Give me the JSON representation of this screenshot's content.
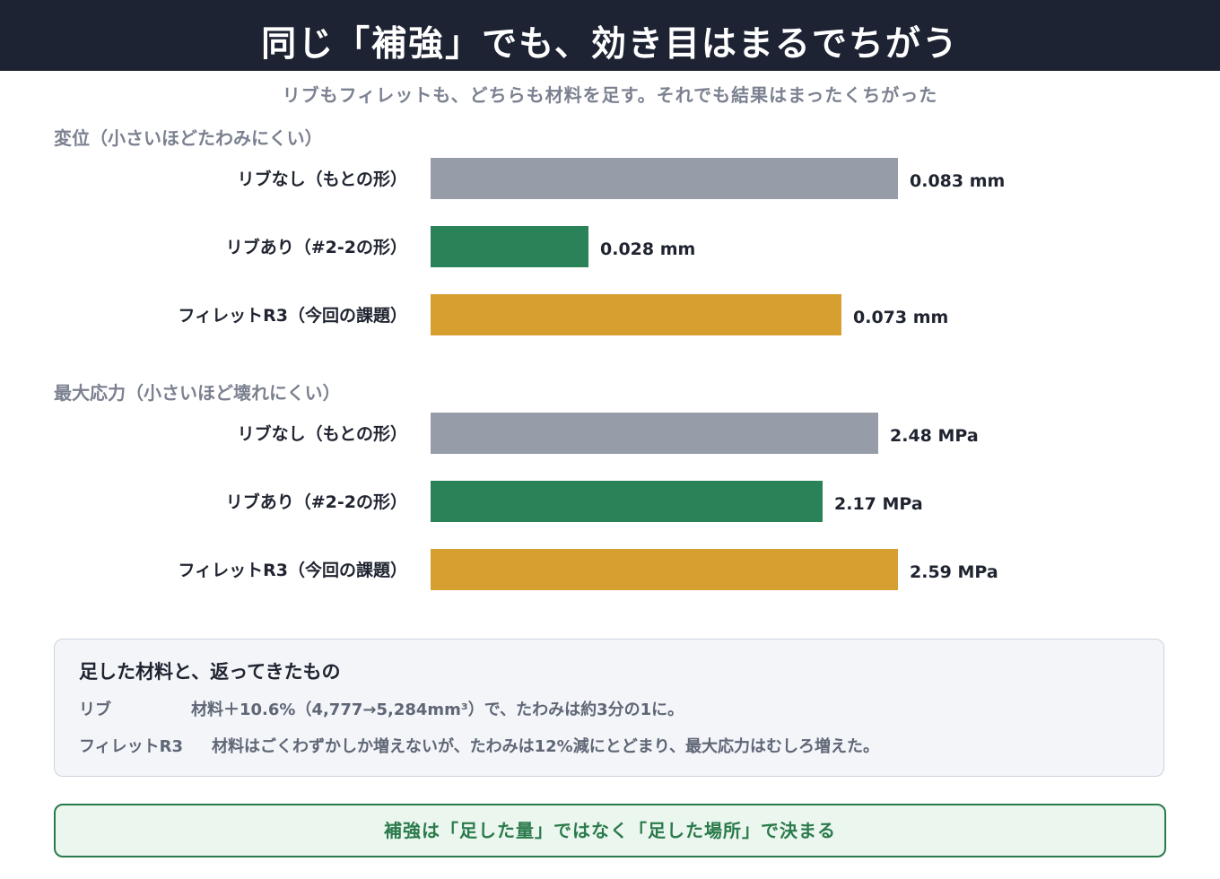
{
  "header": {
    "title": "同じ「補強」でも、効き目はまるでちがう",
    "subtitle": "リブもフィレットも、どちらも材料を足す。それでも結果はまったくちがった"
  },
  "chart_data": [
    {
      "type": "bar",
      "orientation": "horizontal",
      "title": "変位（小さいほどたわみにくい）",
      "unit": "mm",
      "categories": [
        "リブなし（もとの形）",
        "リブあり（#2-2の形）",
        "フィレットR3（今回の課題）"
      ],
      "values": [
        0.083,
        0.028,
        0.073
      ],
      "value_labels": [
        "0.083 mm",
        "0.028 mm",
        "0.073 mm"
      ],
      "colors": [
        "#979da8",
        "#2a8258",
        "#d69f30"
      ],
      "xlim": [
        0,
        0.083
      ],
      "grid": false
    },
    {
      "type": "bar",
      "orientation": "horizontal",
      "title": "最大応力（小さいほど壊れにくい）",
      "unit": "MPa",
      "categories": [
        "リブなし（もとの形）",
        "リブあり（#2-2の形）",
        "フィレットR3（今回の課題）"
      ],
      "values": [
        2.48,
        2.17,
        2.59
      ],
      "value_labels": [
        "2.48 MPa",
        "2.17 MPa",
        "2.59 MPa"
      ],
      "colors": [
        "#979da8",
        "#2a8258",
        "#d69f30"
      ],
      "xlim": [
        0,
        2.59
      ],
      "grid": false
    }
  ],
  "notes": {
    "title": "足した材料と、返ってきたもの",
    "rows": [
      {
        "key": "リブ",
        "value": "材料＋10.6%（4,777→5,284mm³）で、たわみは約3分の1に。"
      },
      {
        "key": "フィレットR3",
        "value": "材料はごくわずかしか増えないが、たわみは12%減にとどまり、最大応力はむしろ増えた。"
      }
    ]
  },
  "conclusion": "補強は「足した量」ではなく「足した場所」で決まる"
}
